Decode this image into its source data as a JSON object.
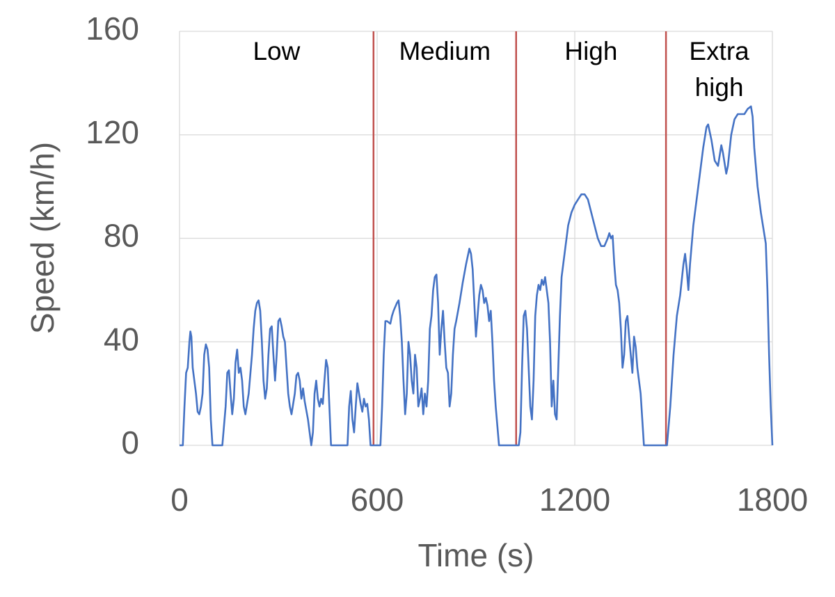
{
  "chart_data": {
    "type": "line",
    "xlabel": "Time (s)",
    "ylabel": "Speed (km/h)",
    "color": "#4472c4",
    "phase_color": "#c0504d",
    "grid": true,
    "xlim": [
      0,
      1800
    ],
    "xticks": [
      0,
      600,
      1200,
      1800
    ],
    "ylim": [
      0,
      160
    ],
    "yticks": [
      0,
      40,
      80,
      120,
      160
    ],
    "phases": [
      {
        "label": "Low",
        "start": 0,
        "end": 589
      },
      {
        "label": "Medium",
        "start": 589,
        "end": 1022
      },
      {
        "label": "High",
        "start": 1022,
        "end": 1477
      },
      {
        "label": "Extra high",
        "start": 1477,
        "end": 1800
      }
    ],
    "x": [
      0,
      10,
      15,
      20,
      25,
      30,
      33,
      36,
      40,
      45,
      50,
      55,
      60,
      65,
      70,
      75,
      80,
      85,
      90,
      95,
      100,
      130,
      140,
      145,
      150,
      155,
      160,
      165,
      170,
      175,
      180,
      185,
      190,
      195,
      200,
      210,
      220,
      225,
      230,
      235,
      240,
      245,
      250,
      255,
      260,
      265,
      270,
      275,
      280,
      285,
      290,
      295,
      300,
      305,
      310,
      315,
      320,
      325,
      330,
      335,
      340,
      350,
      355,
      360,
      365,
      370,
      375,
      380,
      390,
      400,
      405,
      410,
      415,
      420,
      425,
      430,
      435,
      440,
      445,
      450,
      455,
      460,
      510,
      515,
      520,
      525,
      530,
      535,
      540,
      545,
      550,
      555,
      560,
      565,
      570,
      575,
      580,
      610,
      615,
      620,
      625,
      630,
      640,
      645,
      650,
      660,
      665,
      670,
      675,
      680,
      685,
      690,
      695,
      700,
      705,
      710,
      715,
      720,
      725,
      730,
      735,
      740,
      745,
      750,
      755,
      760,
      765,
      770,
      775,
      780,
      785,
      790,
      795,
      800,
      805,
      810,
      815,
      820,
      825,
      830,
      835,
      840,
      850,
      860,
      870,
      880,
      885,
      890,
      895,
      900,
      905,
      910,
      915,
      920,
      925,
      930,
      935,
      940,
      945,
      950,
      955,
      960,
      970,
      1030,
      1035,
      1040,
      1045,
      1050,
      1055,
      1060,
      1065,
      1070,
      1075,
      1080,
      1085,
      1090,
      1095,
      1100,
      1105,
      1110,
      1115,
      1120,
      1125,
      1130,
      1135,
      1140,
      1145,
      1150,
      1155,
      1160,
      1170,
      1180,
      1190,
      1200,
      1210,
      1220,
      1230,
      1240,
      1250,
      1260,
      1270,
      1280,
      1290,
      1300,
      1305,
      1310,
      1315,
      1320,
      1325,
      1330,
      1335,
      1340,
      1345,
      1350,
      1355,
      1360,
      1365,
      1370,
      1375,
      1380,
      1385,
      1390,
      1395,
      1400,
      1410,
      1480,
      1490,
      1500,
      1510,
      1520,
      1530,
      1535,
      1540,
      1545,
      1550,
      1560,
      1570,
      1580,
      1590,
      1600,
      1605,
      1615,
      1625,
      1635,
      1645,
      1650,
      1660,
      1665,
      1675,
      1685,
      1695,
      1705,
      1715,
      1725,
      1735,
      1740,
      1745,
      1755,
      1765,
      1775,
      1780,
      1785,
      1790,
      1795,
      1800
    ],
    "values": [
      0,
      0,
      15,
      28,
      30,
      40,
      44,
      42,
      30,
      25,
      20,
      13,
      12,
      15,
      20,
      35,
      39,
      37,
      30,
      10,
      0,
      0,
      15,
      28,
      29,
      20,
      12,
      18,
      32,
      37,
      28,
      30,
      25,
      15,
      12,
      20,
      35,
      45,
      52,
      55,
      56,
      52,
      40,
      25,
      18,
      22,
      35,
      45,
      46,
      35,
      25,
      35,
      48,
      49,
      46,
      42,
      40,
      30,
      20,
      15,
      12,
      20,
      27,
      28,
      25,
      18,
      22,
      17,
      10,
      0,
      5,
      20,
      25,
      18,
      15,
      18,
      16,
      25,
      33,
      30,
      15,
      0,
      0,
      15,
      21,
      10,
      5,
      15,
      24,
      20,
      16,
      13,
      18,
      15,
      16,
      10,
      0,
      0,
      15,
      35,
      48,
      48,
      47,
      50,
      52,
      55,
      56,
      50,
      40,
      25,
      12,
      20,
      40,
      35,
      25,
      20,
      35,
      30,
      15,
      18,
      22,
      12,
      20,
      15,
      25,
      45,
      50,
      60,
      65,
      66,
      55,
      35,
      45,
      52,
      40,
      30,
      28,
      15,
      20,
      35,
      45,
      48,
      55,
      63,
      70,
      76,
      74,
      68,
      55,
      42,
      50,
      58,
      62,
      60,
      55,
      57,
      54,
      48,
      52,
      40,
      25,
      15,
      0,
      0,
      5,
      30,
      50,
      52,
      45,
      30,
      15,
      10,
      25,
      50,
      58,
      62,
      60,
      64,
      62,
      65,
      60,
      55,
      40,
      15,
      25,
      12,
      10,
      30,
      50,
      65,
      75,
      85,
      90,
      93,
      95,
      97,
      97,
      95,
      90,
      85,
      80,
      77,
      77,
      80,
      82,
      80,
      81,
      70,
      62,
      60,
      55,
      45,
      30,
      35,
      48,
      50,
      42,
      35,
      28,
      42,
      38,
      30,
      25,
      20,
      0,
      0,
      15,
      35,
      50,
      58,
      70,
      74,
      68,
      60,
      70,
      85,
      95,
      105,
      115,
      123,
      124,
      118,
      110,
      108,
      116,
      113,
      105,
      108,
      120,
      126,
      128,
      128,
      128,
      130,
      131,
      127,
      115,
      100,
      90,
      82,
      78,
      60,
      35,
      15,
      0
    ]
  }
}
